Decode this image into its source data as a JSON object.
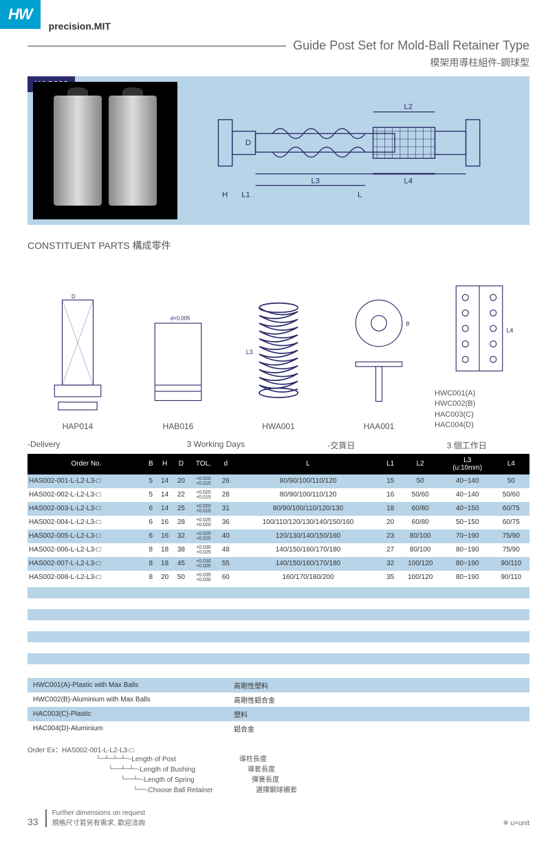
{
  "brand": "precision.MIT",
  "logo": "HW",
  "title_en": "Guide Post Set for Mold-Ball Retainer Type",
  "title_zh": "模架用導柱組件-鋼球型",
  "product_code": "HAS002",
  "section_parts": "CONSTITUENT PARTS 構成零件",
  "parts": [
    {
      "label": "HAP014"
    },
    {
      "label": "HAB016"
    },
    {
      "label": "HWA001"
    },
    {
      "label": "HAA001"
    }
  ],
  "right_part_labels": [
    "HWC001(A)",
    "HWC002(B)",
    "HAC003(C)",
    "HAC004(D)"
  ],
  "delivery": {
    "left": "-Delivery",
    "mid1": "3 Working Days",
    "mid2": "-交貨日",
    "right": "3 個工作日"
  },
  "table": {
    "headers": [
      "Order No.",
      "B",
      "H",
      "D",
      "TOL.",
      "d",
      "L",
      "L1",
      "L2",
      "L3\n(u:10mm)",
      "L4"
    ],
    "rows": [
      [
        "HAS002-001-L-L2-L3-□",
        "5",
        "14",
        "20",
        "+0.020\n+0.015",
        "26",
        "80/90/100/110/120",
        "15",
        "50",
        "40~140",
        "50"
      ],
      [
        "HAS002-002-L-L2-L3-□",
        "5",
        "14",
        "22",
        "+0.020\n+0.015",
        "28",
        "80/90/100/110/120",
        "16",
        "50/60",
        "40~140",
        "50/60"
      ],
      [
        "HAS002-003-L-L2-L3-□",
        "6",
        "14",
        "25",
        "+0.020\n+0.015",
        "31",
        "80/90/100/110/120/130",
        "18",
        "60/80",
        "40~150",
        "60/75"
      ],
      [
        "HAS002-004-L-L2-L3-□",
        "6",
        "16",
        "28",
        "+0.025\n+0.020",
        "36",
        "100/110/120/130/140/150/160",
        "20",
        "60/80",
        "50~150",
        "60/75"
      ],
      [
        "HAS002-005-L-L2-L3-□",
        "6",
        "16",
        "32",
        "+0.025\n+0.020",
        "40",
        "120/130/140/150/160",
        "23",
        "80/100",
        "70~190",
        "75/90"
      ],
      [
        "HAS002-006-L-L2-L3-□",
        "8",
        "18",
        "38",
        "+0.030\n+0.025",
        "48",
        "140/150/160/170/180",
        "27",
        "80/100",
        "80~190",
        "75/90"
      ],
      [
        "HAS002-007-L-L2-L3-□",
        "8",
        "18",
        "45",
        "+0.030\n+0.025",
        "55",
        "140/150/160/170/180",
        "32",
        "100/120",
        "80~190",
        "90/110"
      ],
      [
        "HAS002-008-L-L2-L3-□",
        "8",
        "20",
        "50",
        "+0.035\n+0.030",
        "60",
        "160/170/180/200",
        "35",
        "100/120",
        "80~190",
        "90/110"
      ]
    ]
  },
  "materials": [
    [
      "HWC001(A)-Plastic with Max Balls",
      "高剛性塑料"
    ],
    [
      "HWC002(B)-Aluminium with Max Balls",
      "高剛性鋁合金"
    ],
    [
      "HAC003(C)-Plastic",
      "塑料"
    ],
    [
      "HAC004(D)-Aluminium",
      "鋁合金"
    ]
  ],
  "order_ex_label": "Order Ex：HAS002-001-L-L2-L3-□",
  "order_tree": [
    {
      "en": "-Length of Post",
      "zh": "導柱長度"
    },
    {
      "en": "-Length of Bushing",
      "zh": "導套長度"
    },
    {
      "en": "-Length of Spring",
      "zh": "彈簧長度"
    },
    {
      "en": "-Choose Ball Retainer",
      "zh": "選擇鋼球襯套"
    }
  ],
  "page_num": "33",
  "footer_en": "Further dimensions on request",
  "footer_zh": "規格尺寸若另有需求, 歡迎洽詢",
  "footer_note": "※ u=unit",
  "colors": {
    "blue": "#b8d4e8",
    "accent": "#00a0d0",
    "dark": "#2a2a6a"
  }
}
